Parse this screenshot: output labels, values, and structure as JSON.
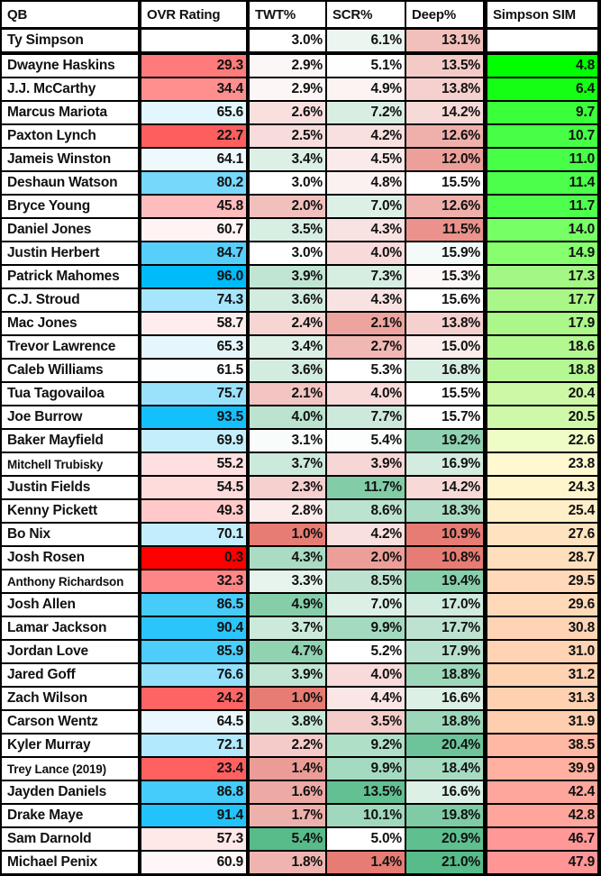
{
  "chart_data": {
    "type": "table",
    "title": "",
    "columns": [
      "QB",
      "OVR Rating",
      "TWT%",
      "SCR%",
      "Deep%",
      "Simpson SIM"
    ],
    "reference_row": {
      "qb": "Ty Simpson",
      "ovr": "",
      "twt": "3.0%",
      "scr": "6.1%",
      "deep": "13.1%",
      "sim": "",
      "colors": {
        "ovr": "#ffffff",
        "twt": "#ffffff",
        "scr": "#ebf6f0",
        "deep": "#f2c0bc",
        "sim": "#ffffff"
      }
    },
    "rows": [
      {
        "qb": "Dwayne Haskins",
        "ovr": "29.3",
        "twt": "2.9%",
        "scr": "5.1%",
        "deep": "13.5%",
        "sim": "4.8",
        "colors": {
          "ovr": "#ff7b7b",
          "twt": "#fdf6f6",
          "scr": "#fefefe",
          "deep": "#f4cac7",
          "sim": "#00ff00"
        }
      },
      {
        "qb": "J.J. McCarthy",
        "ovr": "34.4",
        "twt": "2.9%",
        "scr": "4.9%",
        "deep": "13.8%",
        "sim": "6.4",
        "colors": {
          "ovr": "#ff8f8f",
          "twt": "#fdf6f6",
          "scr": "#fcf3f3",
          "deep": "#f5d0ce",
          "sim": "#14ff14"
        }
      },
      {
        "qb": "Marcus Mariota",
        "ovr": "65.6",
        "twt": "2.6%",
        "scr": "7.2%",
        "deep": "14.2%",
        "sim": "9.7",
        "colors": {
          "ovr": "#e2f6fd",
          "twt": "#f9e0df",
          "scr": "#d9eee3",
          "deep": "#f7dad8",
          "sim": "#3cff3c"
        }
      },
      {
        "qb": "Paxton Lynch",
        "ovr": "22.7",
        "twt": "2.5%",
        "scr": "4.2%",
        "deep": "12.6%",
        "sim": "10.7",
        "colors": {
          "ovr": "#ff5e5e",
          "twt": "#f8dcdb",
          "scr": "#f8e0df",
          "deep": "#efb0ab",
          "sim": "#46ff46"
        }
      },
      {
        "qb": "Jameis Winston",
        "ovr": "64.1",
        "twt": "3.4%",
        "scr": "4.5%",
        "deep": "12.0%",
        "sim": "11.0",
        "colors": {
          "ovr": "#eef9fd",
          "twt": "#dcf0e6",
          "scr": "#faeaea",
          "deep": "#ed9f99",
          "sim": "#48ff48"
        }
      },
      {
        "qb": "Deshaun Watson",
        "ovr": "80.2",
        "twt": "3.0%",
        "scr": "4.8%",
        "deep": "15.5%",
        "sim": "11.4",
        "colors": {
          "ovr": "#76d8fb",
          "twt": "#ffffff",
          "scr": "#fcf1f1",
          "deep": "#ffffff",
          "sim": "#4bff4b"
        }
      },
      {
        "qb": "Bryce Young",
        "ovr": "45.8",
        "twt": "2.0%",
        "scr": "7.0%",
        "deep": "12.6%",
        "sim": "11.7",
        "colors": {
          "ovr": "#ffbcbc",
          "twt": "#f1c0bd",
          "scr": "#dcf0e6",
          "deep": "#efb0ab",
          "sim": "#4eff4e"
        }
      },
      {
        "qb": "Daniel Jones",
        "ovr": "60.7",
        "twt": "3.5%",
        "scr": "4.3%",
        "deep": "11.5%",
        "sim": "14.0",
        "colors": {
          "ovr": "#fff3f3",
          "twt": "#d7eee3",
          "scr": "#f9e3e2",
          "deep": "#ea928b",
          "sim": "#77ff66"
        }
      },
      {
        "qb": "Justin Herbert",
        "ovr": "84.7",
        "twt": "3.0%",
        "scr": "4.0%",
        "deep": "15.9%",
        "sim": "14.9",
        "colors": {
          "ovr": "#56d0fb",
          "twt": "#ffffff",
          "scr": "#f7dad9",
          "deep": "#f3faf7",
          "sim": "#88ff6e"
        }
      },
      {
        "qb": "Patrick Mahomes",
        "ovr": "96.0",
        "twt": "3.9%",
        "scr": "7.3%",
        "deep": "15.3%",
        "sim": "17.3",
        "colors": {
          "ovr": "#00bbf9",
          "twt": "#c0e5d3",
          "scr": "#d6ede1",
          "deep": "#fdf7f7",
          "sim": "#a3f784"
        }
      },
      {
        "qb": "C.J. Stroud",
        "ovr": "74.3",
        "twt": "3.6%",
        "scr": "4.3%",
        "deep": "15.6%",
        "sim": "17.7",
        "colors": {
          "ovr": "#a6e5fc",
          "twt": "#d2ecdf",
          "scr": "#f9e3e2",
          "deep": "#ffffff",
          "sim": "#a8f788"
        }
      },
      {
        "qb": "Mac Jones",
        "ovr": "58.7",
        "twt": "2.4%",
        "scr": "2.1%",
        "deep": "13.8%",
        "sim": "17.9",
        "colors": {
          "ovr": "#ffeded",
          "twt": "#f6d5d3",
          "scr": "#eda49e",
          "deep": "#f5d0ce",
          "sim": "#abf78a"
        }
      },
      {
        "qb": "Trevor Lawrence",
        "ovr": "65.3",
        "twt": "3.4%",
        "scr": "2.7%",
        "deep": "15.0%",
        "sim": "18.6",
        "colors": {
          "ovr": "#e5f7fd",
          "twt": "#dcf0e6",
          "scr": "#f1b8b3",
          "deep": "#fbeeed",
          "sim": "#b3f791"
        }
      },
      {
        "qb": "Caleb Williams",
        "ovr": "61.5",
        "twt": "3.6%",
        "scr": "5.3%",
        "deep": "16.8%",
        "sim": "18.8",
        "colors": {
          "ovr": "#fdfeff",
          "twt": "#d2ecdf",
          "scr": "#ffffff",
          "deep": "#d6ede1",
          "sim": "#b5f793"
        }
      },
      {
        "qb": "Tua Tagovailoa",
        "ovr": "75.7",
        "twt": "2.1%",
        "scr": "4.0%",
        "deep": "15.5%",
        "sim": "20.4",
        "colors": {
          "ovr": "#9ae2fc",
          "twt": "#f2c4c2",
          "scr": "#f7dad9",
          "deep": "#ffffff",
          "sim": "#cdf9a6"
        }
      },
      {
        "qb": "Joe Burrow",
        "ovr": "93.5",
        "twt": "4.0%",
        "scr": "7.7%",
        "deep": "15.7%",
        "sim": "20.5",
        "colors": {
          "ovr": "#14c0f9",
          "twt": "#bbe3cf",
          "scr": "#cde9db",
          "deep": "#fdfefd",
          "sim": "#cff9a8"
        }
      },
      {
        "qb": "Baker Mayfield",
        "ovr": "69.9",
        "twt": "3.1%",
        "scr": "5.4%",
        "deep": "19.2%",
        "sim": "22.6",
        "colors": {
          "ovr": "#c5eefd",
          "twt": "#f8fcfa",
          "scr": "#fcfefd",
          "deep": "#8fd1b0",
          "sim": "#eefcc6"
        }
      },
      {
        "qb": "Mitchell Trubisky",
        "ovr": "55.2",
        "twt": "3.7%",
        "scr": "3.9%",
        "deep": "16.9%",
        "sim": "23.8",
        "colors": {
          "ovr": "#ffdfdf",
          "twt": "#cceadb",
          "scr": "#f6d7d5",
          "deep": "#d3ecdf",
          "sim": "#fff8d0"
        }
      },
      {
        "qb": "Justin Fields",
        "ovr": "54.5",
        "twt": "2.3%",
        "scr": "11.7%",
        "deep": "14.2%",
        "sim": "24.3",
        "colors": {
          "ovr": "#ffdcdc",
          "twt": "#f5d0ce",
          "scr": "#82cda7",
          "deep": "#f7dad8",
          "sim": "#fff5cc"
        }
      },
      {
        "qb": "Kenny Pickett",
        "ovr": "49.3",
        "twt": "2.8%",
        "scr": "8.6%",
        "deep": "18.3%",
        "sim": "25.4",
        "colors": {
          "ovr": "#ffc9c9",
          "twt": "#fbeceb",
          "scr": "#bce3cf",
          "deep": "#aadcc3",
          "sim": "#ffefc8"
        }
      },
      {
        "qb": "Bo Nix",
        "ovr": "70.1",
        "twt": "1.0%",
        "scr": "4.2%",
        "deep": "10.9%",
        "sim": "27.6",
        "colors": {
          "ovr": "#c3edfd",
          "twt": "#e67c73",
          "scr": "#f8e0df",
          "deep": "#e67c73",
          "sim": "#ffe3c0"
        }
      },
      {
        "qb": "Josh Rosen",
        "ovr": "0.3",
        "twt": "4.3%",
        "scr": "2.0%",
        "deep": "10.8%",
        "sim": "28.7",
        "colors": {
          "ovr": "#ff0000",
          "twt": "#a9dcc2",
          "scr": "#ec9f99",
          "deep": "#e67c73",
          "sim": "#ffdebc"
        }
      },
      {
        "qb": "Anthony Richardson",
        "ovr": "32.3",
        "twt": "3.3%",
        "scr": "8.5%",
        "deep": "19.4%",
        "sim": "29.5",
        "colors": {
          "ovr": "#ff8686",
          "twt": "#e6f4ed",
          "scr": "#bde3d0",
          "deep": "#88cfac",
          "sim": "#ffd9b8"
        }
      },
      {
        "qb": "Josh Allen",
        "ovr": "86.5",
        "twt": "4.9%",
        "scr": "7.0%",
        "deep": "17.0%",
        "sim": "29.6",
        "colors": {
          "ovr": "#47ccfa",
          "twt": "#86cea9",
          "scr": "#dcf0e6",
          "deep": "#d1ebde",
          "sim": "#ffd9b8"
        }
      },
      {
        "qb": "Lamar Jackson",
        "ovr": "90.4",
        "twt": "3.7%",
        "scr": "9.9%",
        "deep": "17.7%",
        "sim": "30.8",
        "colors": {
          "ovr": "#2ac5fa",
          "twt": "#cceadb",
          "scr": "#a4dabf",
          "deep": "#bde3d0",
          "sim": "#ffd4b4"
        }
      },
      {
        "qb": "Jordan Love",
        "ovr": "85.9",
        "twt": "4.7%",
        "scr": "5.2%",
        "deep": "17.9%",
        "sim": "31.0",
        "colors": {
          "ovr": "#4ccdfa",
          "twt": "#91d2b1",
          "scr": "#ffffff",
          "deep": "#b7e1cc",
          "sim": "#ffd3b3"
        }
      },
      {
        "qb": "Jared Goff",
        "ovr": "76.6",
        "twt": "3.9%",
        "scr": "4.0%",
        "deep": "18.8%",
        "sim": "31.2",
        "colors": {
          "ovr": "#93e0fc",
          "twt": "#c0e5d3",
          "scr": "#f7dad9",
          "deep": "#9dd7ba",
          "sim": "#ffd2b2"
        }
      },
      {
        "qb": "Zach Wilson",
        "ovr": "24.2",
        "twt": "1.0%",
        "scr": "4.4%",
        "deep": "16.6%",
        "sim": "31.3",
        "colors": {
          "ovr": "#ff6464",
          "twt": "#e67c73",
          "scr": "#f9e6e5",
          "deep": "#dcf0e6",
          "sim": "#ffd1b1"
        }
      },
      {
        "qb": "Carson Wentz",
        "ovr": "64.5",
        "twt": "3.8%",
        "scr": "3.5%",
        "deep": "18.8%",
        "sim": "31.9",
        "colors": {
          "ovr": "#eaf8fd",
          "twt": "#c7e8d8",
          "scr": "#f4ccc9",
          "deep": "#9dd7ba",
          "sim": "#ffceae"
        }
      },
      {
        "qb": "Kyler Murray",
        "ovr": "72.1",
        "twt": "2.2%",
        "scr": "9.2%",
        "deep": "20.4%",
        "sim": "38.5",
        "colors": {
          "ovr": "#b3e9fc",
          "twt": "#f4cbc9",
          "scr": "#b0dfc7",
          "deep": "#6dc49b",
          "sim": "#ffb8a4"
        }
      },
      {
        "qb": "Trey Lance (2019)",
        "ovr": "23.4",
        "twt": "1.4%",
        "scr": "9.9%",
        "deep": "18.4%",
        "sim": "39.9",
        "colors": {
          "ovr": "#ff6060",
          "twt": "#eb9c96",
          "scr": "#a4dabf",
          "deep": "#a7dbc1",
          "sim": "#ffb0a0"
        }
      },
      {
        "qb": "Jayden Daniels",
        "ovr": "86.8",
        "twt": "1.6%",
        "scr": "13.5%",
        "deep": "16.6%",
        "sim": "42.4",
        "colors": {
          "ovr": "#46ccfa",
          "twt": "#edaaa5",
          "scr": "#63c093",
          "deep": "#dcf0e6",
          "sim": "#ffa69c"
        }
      },
      {
        "qb": "Drake Maye",
        "ovr": "91.4",
        "twt": "1.7%",
        "scr": "10.1%",
        "deep": "19.8%",
        "sim": "42.8",
        "colors": {
          "ovr": "#22c3fa",
          "twt": "#eeb0ab",
          "scr": "#a0d8bd",
          "deep": "#7fcba5",
          "sim": "#ffa59b"
        }
      },
      {
        "qb": "Sam Darnold",
        "ovr": "57.3",
        "twt": "5.4%",
        "scr": "5.0%",
        "deep": "20.9%",
        "sim": "46.7",
        "colors": {
          "ovr": "#ffe8e8",
          "twt": "#57bb8a",
          "scr": "#ffffff",
          "deep": "#5fbf8f",
          "sim": "#ff9896"
        }
      },
      {
        "qb": "Michael Penix",
        "ovr": "60.9",
        "twt": "1.8%",
        "scr": "1.4%",
        "deep": "21.0%",
        "sim": "47.9",
        "colors": {
          "ovr": "#fff7f7",
          "twt": "#efb4b0",
          "scr": "#e67c73",
          "deep": "#57bb8a",
          "sim": "#ff9595"
        }
      }
    ],
    "color_scales": {
      "ovr": {
        "low": "#ff0000",
        "mid": "#ffffff",
        "high": "#00bbf9"
      },
      "twt_scr_deep": {
        "low": "#e67c73",
        "mid": "#ffffff",
        "high": "#57bb8a"
      },
      "sim": {
        "low": "#00ff00",
        "mid": "#fff8d0",
        "high": "#ff9595"
      }
    }
  }
}
